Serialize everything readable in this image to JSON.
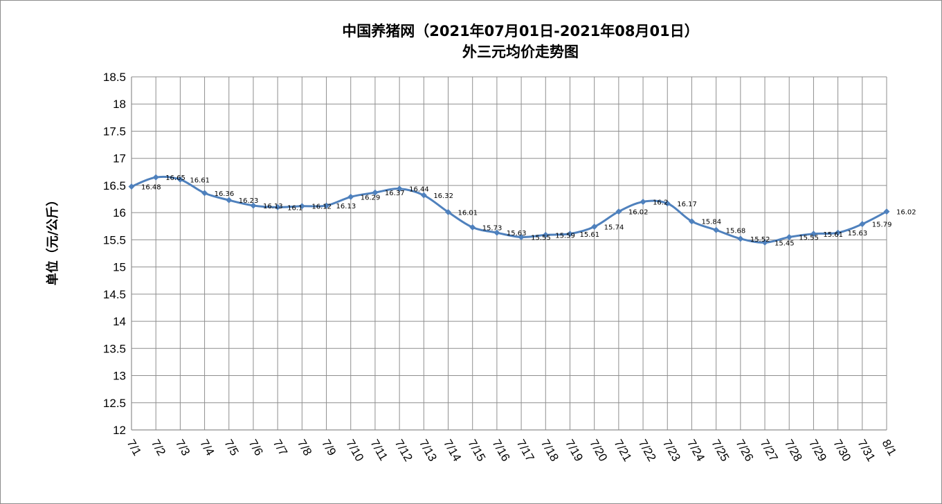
{
  "chart_data": {
    "type": "line",
    "title": "中国养猪网（2021年07月01日-2021年08月01日）",
    "subtitle": "外三元均价走势图",
    "xlabel": "",
    "ylabel": "单位（元/公斤）",
    "ylim": [
      12,
      18.5
    ],
    "ytick_step": 0.5,
    "yticks": [
      "12",
      "12.5",
      "13",
      "13.5",
      "14",
      "14.5",
      "15",
      "15.5",
      "16",
      "16.5",
      "17",
      "17.5",
      "18",
      "18.5"
    ],
    "grid": true,
    "legend": "none",
    "line_color": "#4F81BD",
    "categories": [
      "7/1",
      "7/2",
      "7/3",
      "7/4",
      "7/5",
      "7/6",
      "7/7",
      "7/8",
      "7/9",
      "7/10",
      "7/11",
      "7/12",
      "7/13",
      "7/14",
      "7/15",
      "7/16",
      "7/17",
      "7/18",
      "7/19",
      "7/20",
      "7/21",
      "7/22",
      "7/23",
      "7/24",
      "7/25",
      "7/26",
      "7/27",
      "7/28",
      "7/29",
      "7/30",
      "7/31",
      "8/1"
    ],
    "values": [
      16.48,
      16.65,
      16.61,
      16.36,
      16.23,
      16.13,
      16.1,
      16.12,
      16.13,
      16.29,
      16.37,
      16.44,
      16.32,
      16.01,
      15.73,
      15.63,
      15.55,
      15.59,
      15.61,
      15.74,
      16.02,
      16.2,
      16.17,
      15.84,
      15.68,
      15.52,
      15.45,
      15.55,
      15.61,
      15.63,
      15.79,
      16.02
    ],
    "data_labels": [
      "16.48",
      "16.65",
      "16.61",
      "16.36",
      "16.23",
      "16.13",
      "16.1",
      "16.12",
      "16.13",
      "16.29",
      "16.37",
      "16.44",
      "16.32",
      "16.01",
      "15.73",
      "15.63",
      "15.55",
      "15.59",
      "15.61",
      "15.74",
      "16.02",
      "16.2",
      "16.17",
      "15.84",
      "15.68",
      "15.52",
      "15.45",
      "15.55",
      "15.61",
      "15.63",
      "15.79",
      "16.02"
    ]
  }
}
